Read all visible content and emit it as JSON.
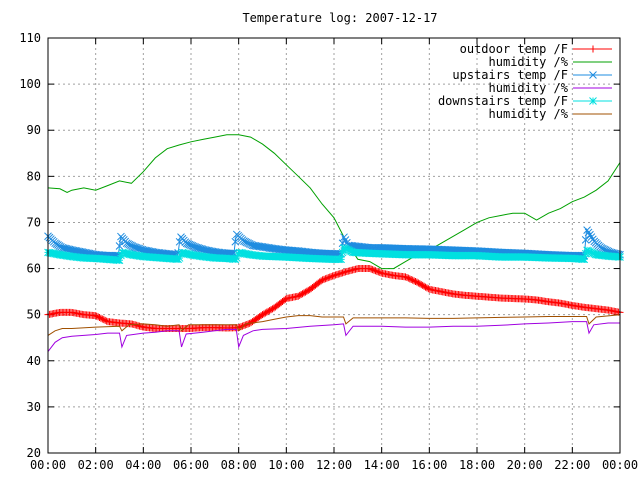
{
  "chart_data": {
    "type": "line",
    "title": "Temperature log: 2007-12-17",
    "xlabel": "",
    "ylabel": "",
    "x_range_hours": [
      0,
      24
    ],
    "ylim": [
      20,
      110
    ],
    "x_ticks": [
      "00:00",
      "02:00",
      "04:00",
      "06:00",
      "08:00",
      "10:00",
      "12:00",
      "14:00",
      "16:00",
      "18:00",
      "20:00",
      "22:00",
      "00:00"
    ],
    "y_ticks": [
      "20",
      "30",
      "40",
      "50",
      "60",
      "70",
      "80",
      "90",
      "100",
      "110"
    ],
    "grid": true,
    "legend_position": "top-right",
    "series": [
      {
        "name": "outdoor temp /F",
        "color": "#ff0000",
        "marker": "plus",
        "points": [
          [
            0,
            50
          ],
          [
            0.5,
            50.5
          ],
          [
            1,
            50.5
          ],
          [
            1.5,
            50
          ],
          [
            2,
            49.8
          ],
          [
            2.5,
            48.5
          ],
          [
            3,
            48.2
          ],
          [
            3.5,
            48
          ],
          [
            4,
            47.3
          ],
          [
            4.5,
            47
          ],
          [
            5,
            47
          ],
          [
            5.5,
            47
          ],
          [
            6,
            47
          ],
          [
            6.5,
            47.2
          ],
          [
            7,
            47.2
          ],
          [
            7.5,
            47.1
          ],
          [
            8,
            47.2
          ],
          [
            8.5,
            48.2
          ],
          [
            9,
            50
          ],
          [
            9.5,
            51.5
          ],
          [
            10,
            53.5
          ],
          [
            10.5,
            54
          ],
          [
            11,
            55.5
          ],
          [
            11.5,
            57.5
          ],
          [
            12,
            58.5
          ],
          [
            12.5,
            59.3
          ],
          [
            13,
            60
          ],
          [
            13.5,
            60
          ],
          [
            14,
            59
          ],
          [
            14.5,
            58.5
          ],
          [
            15,
            58.2
          ],
          [
            15.5,
            57
          ],
          [
            16,
            55.5
          ],
          [
            16.5,
            55
          ],
          [
            17,
            54.5
          ],
          [
            17.5,
            54.2
          ],
          [
            18,
            54
          ],
          [
            18.5,
            53.8
          ],
          [
            19,
            53.6
          ],
          [
            19.5,
            53.5
          ],
          [
            20,
            53.4
          ],
          [
            20.5,
            53.2
          ],
          [
            21,
            52.8
          ],
          [
            21.5,
            52.5
          ],
          [
            22,
            52
          ],
          [
            22.5,
            51.6
          ],
          [
            23,
            51.3
          ],
          [
            23.5,
            51
          ],
          [
            24,
            50.5
          ]
        ]
      },
      {
        "name": "humidity /%",
        "color": "#00a000",
        "marker": "none",
        "points": [
          [
            0,
            77.5
          ],
          [
            0.5,
            77.3
          ],
          [
            0.8,
            76.5
          ],
          [
            1,
            77
          ],
          [
            1.5,
            77.5
          ],
          [
            2,
            77
          ],
          [
            2.5,
            78
          ],
          [
            3,
            79
          ],
          [
            3.5,
            78.5
          ],
          [
            4,
            81
          ],
          [
            4.5,
            84
          ],
          [
            5,
            86
          ],
          [
            5.5,
            86.8
          ],
          [
            6,
            87.5
          ],
          [
            6.5,
            88
          ],
          [
            7,
            88.5
          ],
          [
            7.5,
            89
          ],
          [
            8,
            89
          ],
          [
            8.5,
            88.5
          ],
          [
            9,
            87
          ],
          [
            9.5,
            85
          ],
          [
            10,
            82.5
          ],
          [
            10.5,
            80
          ],
          [
            11,
            77.5
          ],
          [
            11.5,
            74
          ],
          [
            12,
            71
          ],
          [
            12.5,
            66
          ],
          [
            13,
            62
          ],
          [
            13.5,
            61.5
          ],
          [
            14,
            60
          ],
          [
            14.5,
            60
          ],
          [
            15,
            61.5
          ],
          [
            15.5,
            63
          ],
          [
            16,
            64
          ],
          [
            16.5,
            65.5
          ],
          [
            17,
            67
          ],
          [
            17.5,
            68.5
          ],
          [
            18,
            70
          ],
          [
            18.5,
            71
          ],
          [
            19,
            71.5
          ],
          [
            19.5,
            72
          ],
          [
            20,
            72
          ],
          [
            20.5,
            70.5
          ],
          [
            21,
            72
          ],
          [
            21.5,
            73
          ],
          [
            22,
            74.5
          ],
          [
            22.5,
            75.5
          ],
          [
            23,
            77
          ],
          [
            23.5,
            79
          ],
          [
            24,
            83
          ]
        ]
      },
      {
        "name": "upstairs temp /F",
        "color": "#1e8ce0",
        "marker": "x",
        "points": [
          [
            0,
            67
          ],
          [
            0.3,
            65.5
          ],
          [
            0.6,
            64.5
          ],
          [
            1,
            64
          ],
          [
            1.5,
            63.5
          ],
          [
            2,
            63
          ],
          [
            2.5,
            62.8
          ],
          [
            2.95,
            62.8
          ],
          [
            3.05,
            67
          ],
          [
            3.3,
            65.5
          ],
          [
            3.6,
            64.7
          ],
          [
            4,
            64
          ],
          [
            4.5,
            63.5
          ],
          [
            5,
            63.2
          ],
          [
            5.45,
            63
          ],
          [
            5.55,
            67
          ],
          [
            5.8,
            65.5
          ],
          [
            6.2,
            64.6
          ],
          [
            6.6,
            64
          ],
          [
            7,
            63.6
          ],
          [
            7.5,
            63.3
          ],
          [
            7.8,
            63.3
          ],
          [
            7.9,
            67.5
          ],
          [
            8.2,
            66
          ],
          [
            8.6,
            65
          ],
          [
            9,
            64.7
          ],
          [
            9.5,
            64.3
          ],
          [
            10,
            64
          ],
          [
            10.5,
            63.8
          ],
          [
            11,
            63.5
          ],
          [
            11.5,
            63.3
          ],
          [
            12,
            63.2
          ],
          [
            12.3,
            63.2
          ],
          [
            12.4,
            67
          ],
          [
            12.6,
            65
          ],
          [
            13,
            64.8
          ],
          [
            13.5,
            64.5
          ],
          [
            14,
            64.5
          ],
          [
            15,
            64.3
          ],
          [
            16,
            64.2
          ],
          [
            17,
            64
          ],
          [
            18,
            63.8
          ],
          [
            19,
            63.5
          ],
          [
            20,
            63.3
          ],
          [
            21,
            63
          ],
          [
            22,
            62.8
          ],
          [
            22.5,
            62.8
          ],
          [
            22.6,
            68.5
          ],
          [
            22.9,
            66
          ],
          [
            23.2,
            64.5
          ],
          [
            23.6,
            63.5
          ],
          [
            24,
            63
          ]
        ]
      },
      {
        "name": "humidity /%",
        "color": "#a000e0",
        "marker": "none",
        "points": [
          [
            0,
            42
          ],
          [
            0.3,
            44
          ],
          [
            0.6,
            45
          ],
          [
            1,
            45.3
          ],
          [
            1.5,
            45.5
          ],
          [
            2,
            45.7
          ],
          [
            2.5,
            46
          ],
          [
            3,
            46
          ],
          [
            3.1,
            43
          ],
          [
            3.3,
            45.5
          ],
          [
            4,
            46
          ],
          [
            4.5,
            46.2
          ],
          [
            5,
            46.5
          ],
          [
            5.5,
            46.5
          ],
          [
            5.6,
            43
          ],
          [
            5.8,
            45.8
          ],
          [
            6.5,
            46.2
          ],
          [
            7,
            46.5
          ],
          [
            7.5,
            46.8
          ],
          [
            7.9,
            46.8
          ],
          [
            8,
            43
          ],
          [
            8.2,
            45.5
          ],
          [
            8.6,
            46.5
          ],
          [
            9,
            46.8
          ],
          [
            10,
            47
          ],
          [
            11,
            47.5
          ],
          [
            12,
            47.8
          ],
          [
            12.4,
            48
          ],
          [
            12.5,
            45.5
          ],
          [
            12.8,
            47.5
          ],
          [
            13.5,
            47.5
          ],
          [
            14,
            47.5
          ],
          [
            15,
            47.3
          ],
          [
            16,
            47.3
          ],
          [
            17,
            47.5
          ],
          [
            18,
            47.5
          ],
          [
            19,
            47.7
          ],
          [
            20,
            48
          ],
          [
            21,
            48.2
          ],
          [
            22,
            48.5
          ],
          [
            22.6,
            48.5
          ],
          [
            22.7,
            46
          ],
          [
            22.9,
            47.8
          ],
          [
            23.5,
            48.2
          ],
          [
            24,
            48.2
          ]
        ]
      },
      {
        "name": "downstairs temp /F",
        "color": "#00e0e0",
        "marker": "star",
        "points": [
          [
            0,
            63.5
          ],
          [
            0.5,
            63
          ],
          [
            1,
            62.6
          ],
          [
            1.5,
            62.3
          ],
          [
            2,
            62.2
          ],
          [
            2.5,
            62
          ],
          [
            3,
            61.8
          ],
          [
            3.1,
            63.5
          ],
          [
            3.5,
            63
          ],
          [
            4,
            62.6
          ],
          [
            4.5,
            62.4
          ],
          [
            5,
            62.2
          ],
          [
            5.5,
            62
          ],
          [
            5.6,
            63.5
          ],
          [
            6,
            63
          ],
          [
            6.5,
            62.6
          ],
          [
            7,
            62.3
          ],
          [
            7.5,
            62.2
          ],
          [
            7.9,
            62
          ],
          [
            8,
            63.5
          ],
          [
            8.5,
            63
          ],
          [
            9,
            62.7
          ],
          [
            10,
            62.5
          ],
          [
            11,
            62.2
          ],
          [
            12,
            62
          ],
          [
            12.3,
            62
          ],
          [
            12.4,
            64.5
          ],
          [
            12.8,
            63.5
          ],
          [
            13.5,
            63.3
          ],
          [
            14,
            63.2
          ],
          [
            15,
            63
          ],
          [
            16,
            63
          ],
          [
            17,
            62.8
          ],
          [
            18,
            62.8
          ],
          [
            19,
            62.5
          ],
          [
            20,
            62.5
          ],
          [
            21,
            62.3
          ],
          [
            22,
            62.2
          ],
          [
            22.5,
            62
          ],
          [
            22.6,
            64
          ],
          [
            23,
            63
          ],
          [
            23.5,
            62.7
          ],
          [
            24,
            62.5
          ]
        ]
      },
      {
        "name": "humidity /%",
        "color": "#a05000",
        "marker": "none",
        "points": [
          [
            0,
            45.5
          ],
          [
            0.3,
            46.5
          ],
          [
            0.6,
            47
          ],
          [
            1,
            47
          ],
          [
            2,
            47.3
          ],
          [
            3,
            47.5
          ],
          [
            3.1,
            46.5
          ],
          [
            3.4,
            47.8
          ],
          [
            4,
            48
          ],
          [
            4.5,
            47.8
          ],
          [
            5,
            47.5
          ],
          [
            5.5,
            47.8
          ],
          [
            5.6,
            46.5
          ],
          [
            5.9,
            47.8
          ],
          [
            6.5,
            47.8
          ],
          [
            7,
            47.8
          ],
          [
            7.5,
            47.8
          ],
          [
            7.9,
            47.8
          ],
          [
            8,
            46.5
          ],
          [
            8.3,
            48
          ],
          [
            9,
            48.5
          ],
          [
            9.5,
            49
          ],
          [
            10,
            49.5
          ],
          [
            10.5,
            49.8
          ],
          [
            11,
            49.8
          ],
          [
            11.5,
            49.5
          ],
          [
            12,
            49.5
          ],
          [
            12.4,
            49.5
          ],
          [
            12.5,
            48
          ],
          [
            12.8,
            49.3
          ],
          [
            13.5,
            49.3
          ],
          [
            14,
            49.3
          ],
          [
            15,
            49.3
          ],
          [
            16,
            49.2
          ],
          [
            17,
            49.2
          ],
          [
            18,
            49.3
          ],
          [
            19,
            49.4
          ],
          [
            20,
            49.5
          ],
          [
            21,
            49.6
          ],
          [
            22,
            49.6
          ],
          [
            22.6,
            49.6
          ],
          [
            22.7,
            48
          ],
          [
            23,
            49.5
          ],
          [
            24,
            50
          ]
        ]
      }
    ]
  }
}
